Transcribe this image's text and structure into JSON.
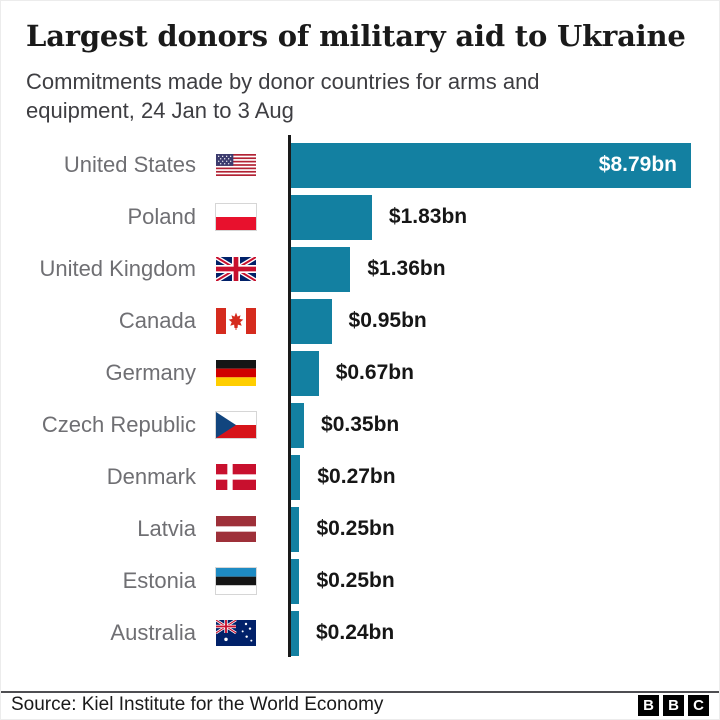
{
  "header": {
    "title": "Largest donors of military aid to Ukraine",
    "subtitle": "Commitments made by donor countries for arms and equipment, 24 Jan to 3 Aug"
  },
  "chart_data": {
    "type": "bar",
    "orientation": "horizontal",
    "title": "Largest donors of military aid to Ukraine",
    "subtitle": "Commitments made by donor countries for arms and equipment, 24 Jan to 3 Aug",
    "unit": "USD billions",
    "xlim": [
      0,
      8.79
    ],
    "grid": false,
    "legend": false,
    "bar_color": "#1380A1",
    "axis_color": "#1a1a1a",
    "categories": [
      "United States",
      "Poland",
      "United Kingdom",
      "Canada",
      "Germany",
      "Czech Republic",
      "Denmark",
      "Latvia",
      "Estonia",
      "Australia"
    ],
    "values": [
      8.79,
      1.83,
      1.36,
      0.95,
      0.67,
      0.35,
      0.27,
      0.25,
      0.25,
      0.24
    ],
    "value_labels": [
      "$8.79bn",
      "$1.83bn",
      "$1.36bn",
      "$0.95bn",
      "$0.67bn",
      "$0.35bn",
      "$0.27bn",
      "$0.25bn",
      "$0.25bn",
      "$0.24bn"
    ],
    "flags": [
      "united-states",
      "poland",
      "united-kingdom",
      "canada",
      "germany",
      "czech-republic",
      "denmark",
      "latvia",
      "estonia",
      "australia"
    ]
  },
  "footer": {
    "source": "Source: Kiel Institute for the World Economy",
    "logo_letters": [
      "B",
      "B",
      "C"
    ]
  }
}
